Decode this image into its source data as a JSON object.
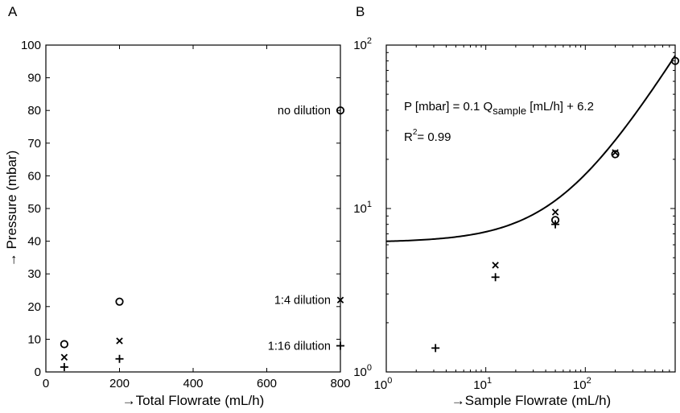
{
  "panels": {
    "a": {
      "letter": "A"
    },
    "b": {
      "letter": "B"
    }
  },
  "chart_data": [
    {
      "type": "scatter",
      "xlabel": "→Total Flowrate (mL/h)",
      "ylabel": "→ Pressure (mbar)",
      "xlim": [
        0,
        800
      ],
      "ylim": [
        0,
        100
      ],
      "xticks": [
        0,
        200,
        400,
        600,
        800
      ],
      "yticks": [
        0,
        10,
        20,
        30,
        40,
        50,
        60,
        70,
        80,
        90,
        100
      ],
      "series": [
        {
          "marker": "circle",
          "x": [
            50,
            200,
            800
          ],
          "y": [
            8.5,
            21.5,
            80
          ]
        },
        {
          "marker": "x",
          "x": [
            50,
            200,
            800
          ],
          "y": [
            4.5,
            9.5,
            22
          ]
        },
        {
          "marker": "plus",
          "x": [
            50,
            200,
            800
          ],
          "y": [
            1.5,
            4,
            8
          ]
        }
      ],
      "annotations": [
        {
          "text": "no dilution",
          "x": 800,
          "y": 80
        },
        {
          "text": "1:4 dilution",
          "x": 800,
          "y": 22
        },
        {
          "text": "1:16 dilution",
          "x": 800,
          "y": 8
        }
      ]
    },
    {
      "type": "scatter",
      "xlabel": "→Sample Flowrate (mL/h)",
      "ylabel": "",
      "xscale": "log",
      "yscale": "log",
      "xlim": [
        1,
        800
      ],
      "ylim": [
        1,
        100
      ],
      "xticks": [
        1,
        10,
        100
      ],
      "yticks": [
        1,
        10,
        100
      ],
      "series": [
        {
          "marker": "circle",
          "x": [
            50,
            200,
            800
          ],
          "y": [
            8.5,
            21.5,
            80
          ]
        },
        {
          "marker": "x",
          "x": [
            12.5,
            50,
            200
          ],
          "y": [
            4.5,
            9.5,
            22
          ]
        },
        {
          "marker": "plus",
          "x": [
            3.125,
            12.5,
            50
          ],
          "y": [
            1.4,
            3.8,
            8
          ]
        }
      ],
      "fit": {
        "slope": 0.1,
        "intercept": 6.2
      },
      "annotations": {
        "formula_pre": "P [mbar] = 0.1 Q",
        "formula_sub": "sample",
        "formula_post": " [mL/h] + 6.2",
        "r2_label": "R",
        "r2_sup": "2",
        "r2_value": "= 0.99"
      }
    }
  ]
}
